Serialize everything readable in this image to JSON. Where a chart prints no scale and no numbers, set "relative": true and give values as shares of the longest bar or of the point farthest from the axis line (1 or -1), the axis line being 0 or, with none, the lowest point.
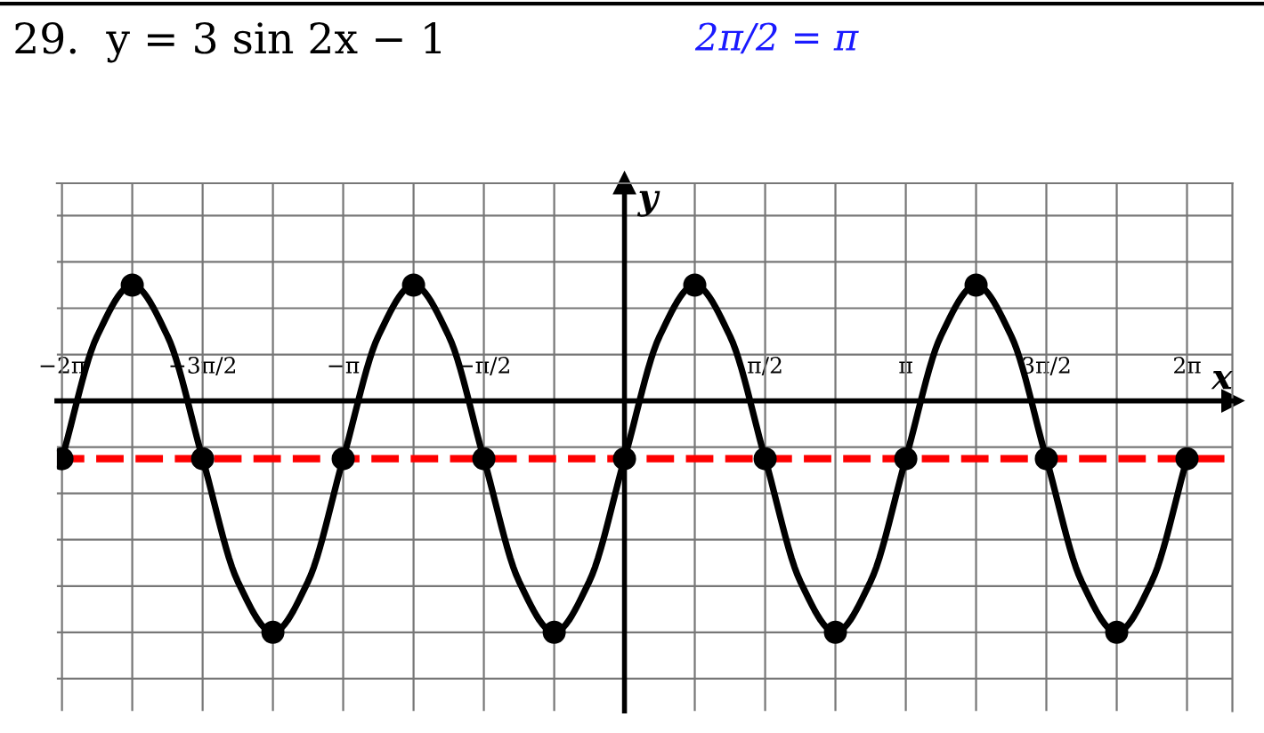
{
  "chart_data": {
    "type": "line",
    "title": "29.  y = 3 sin 2x − 1",
    "xlabel": "x",
    "ylabel": "y",
    "annotations": [
      "2π/2 = π"
    ],
    "relative": true,
    "xlim": [
      -6.34,
      6.79
    ],
    "xticks": [
      {
        "value": -6.283,
        "label": "−2π"
      },
      {
        "value": -5.498,
        "label": null
      },
      {
        "value": -4.712,
        "label": "−3π/2"
      },
      {
        "value": -3.927,
        "label": null
      },
      {
        "value": -3.142,
        "label": "−π"
      },
      {
        "value": -2.356,
        "label": null
      },
      {
        "value": -1.571,
        "label": "−π/2"
      },
      {
        "value": -0.785,
        "label": null
      },
      {
        "value": 0.785,
        "label": null
      },
      {
        "value": 1.571,
        "label": "π/2"
      },
      {
        "value": 2.356,
        "label": null
      },
      {
        "value": 3.142,
        "label": "π"
      },
      {
        "value": 3.927,
        "label": null
      },
      {
        "value": 4.712,
        "label": "3π/2"
      },
      {
        "value": 5.498,
        "label": null
      },
      {
        "value": 6.283,
        "label": "2π"
      }
    ],
    "series": [
      {
        "type": "line",
        "color": "#000000",
        "marker": "none",
        "x": [
          -6.283,
          -5.89,
          -5.498,
          -5.105,
          -4.712,
          -4.32,
          -3.927,
          -3.534,
          -3.142,
          -2.749,
          -2.356,
          -1.963,
          -1.571,
          -1.178,
          -0.785,
          -0.393,
          0,
          0.393,
          0.785,
          1.178,
          1.571,
          1.963,
          2.356,
          2.749,
          3.142,
          3.534,
          3.927,
          4.32,
          4.712,
          5.105,
          5.498,
          5.89,
          6.283
        ],
        "values": [
          -0.25,
          0.28,
          0.5,
          0.28,
          -0.25,
          -0.78,
          -1,
          -0.78,
          -0.25,
          0.28,
          0.5,
          0.28,
          -0.25,
          -0.78,
          -1,
          -0.78,
          -0.25,
          0.28,
          0.5,
          0.28,
          -0.25,
          -0.78,
          -1,
          -0.78,
          -0.25,
          0.28,
          0.5,
          0.28,
          -0.25,
          -0.78,
          -1,
          -0.78,
          -0.25
        ]
      },
      {
        "type": "scatter",
        "marker": "circle",
        "color": "#000000",
        "x": [
          -6.283,
          -5.498,
          -4.712,
          -3.927,
          -3.142,
          -2.356,
          -1.571,
          -0.785,
          0,
          0.785,
          1.571,
          2.356,
          3.142,
          3.927,
          4.712,
          5.498,
          6.283
        ],
        "values": [
          -0.25,
          0.5,
          -0.25,
          -1,
          -0.25,
          0.5,
          -0.25,
          -1,
          -0.25,
          0.5,
          -0.25,
          -1,
          -0.25,
          0.5,
          -0.25,
          -1,
          -0.25
        ]
      }
    ],
    "ref_lines": [
      {
        "axis": "y",
        "value": -0.25,
        "color": "#ff0000",
        "line_style": "dashed"
      }
    ],
    "grid": true,
    "tick_labels": "x"
  }
}
